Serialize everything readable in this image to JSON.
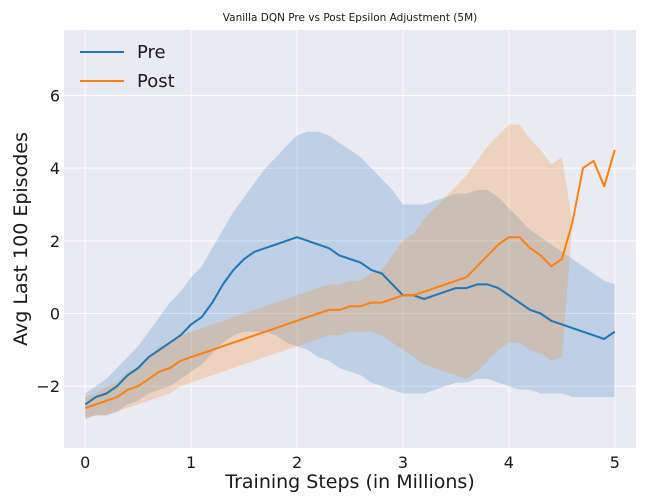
{
  "chart_data": {
    "type": "line",
    "title": "Vanilla DQN Pre vs Post Epsilon Adjustment (5M)",
    "xlabel": "Training Steps (in Millions)",
    "ylabel": "Avg Last 100 Episodes",
    "xlim": [
      -0.2,
      5.2
    ],
    "ylim": [
      -3.7,
      7.8
    ],
    "xticks": [
      0,
      1,
      2,
      3,
      4,
      5
    ],
    "xtick_labels": [
      "0",
      "1",
      "2",
      "3",
      "4",
      "5"
    ],
    "yticks": [
      -2,
      0,
      2,
      4,
      6
    ],
    "ytick_labels": [
      "−2",
      "0",
      "2",
      "4",
      "6"
    ],
    "grid": true,
    "legend_position": "top-left",
    "style": "seaborn-darkgrid",
    "background_color": "#eaeaf2",
    "series": [
      {
        "name": "Pre",
        "color": "#1f77b4",
        "x": [
          0.0,
          0.1,
          0.2,
          0.3,
          0.4,
          0.5,
          0.6,
          0.7,
          0.8,
          0.9,
          1.0,
          1.1,
          1.2,
          1.3,
          1.4,
          1.5,
          1.6,
          1.7,
          1.8,
          1.9,
          2.0,
          2.1,
          2.2,
          2.3,
          2.4,
          2.5,
          2.6,
          2.7,
          2.8,
          2.9,
          3.0,
          3.1,
          3.2,
          3.3,
          3.4,
          3.5,
          3.6,
          3.7,
          3.8,
          3.9,
          4.0,
          4.1,
          4.2,
          4.3,
          4.4,
          4.5,
          4.6,
          4.7,
          4.8,
          4.9,
          5.0
        ],
        "y": [
          -2.5,
          -2.3,
          -2.2,
          -2.0,
          -1.7,
          -1.5,
          -1.2,
          -1.0,
          -0.8,
          -0.6,
          -0.3,
          -0.1,
          0.3,
          0.8,
          1.2,
          1.5,
          1.7,
          1.8,
          1.9,
          2.0,
          2.1,
          2.0,
          1.9,
          1.8,
          1.6,
          1.5,
          1.4,
          1.2,
          1.1,
          0.8,
          0.5,
          0.5,
          0.4,
          0.5,
          0.6,
          0.7,
          0.7,
          0.8,
          0.8,
          0.7,
          0.5,
          0.3,
          0.1,
          0.0,
          -0.2,
          -0.3,
          -0.4,
          -0.5,
          -0.6,
          -0.7,
          -0.5
        ],
        "band_low": [
          -2.9,
          -2.8,
          -2.8,
          -2.7,
          -2.5,
          -2.4,
          -2.2,
          -2.1,
          -2.0,
          -1.8,
          -1.6,
          -1.4,
          -1.1,
          -0.8,
          -0.6,
          -0.5,
          -0.5,
          -0.5,
          -0.6,
          -0.8,
          -0.9,
          -1.0,
          -1.2,
          -1.3,
          -1.5,
          -1.6,
          -1.7,
          -1.9,
          -2.0,
          -2.1,
          -2.2,
          -2.2,
          -2.2,
          -2.1,
          -2.0,
          -1.9,
          -1.9,
          -1.8,
          -1.8,
          -1.9,
          -2.0,
          -2.1,
          -2.1,
          -2.2,
          -2.2,
          -2.2,
          -2.3,
          -2.3,
          -2.3,
          -2.3,
          -2.3
        ],
        "band_high": [
          -2.2,
          -2.0,
          -1.8,
          -1.5,
          -1.2,
          -0.9,
          -0.5,
          -0.1,
          0.3,
          0.6,
          1.0,
          1.3,
          1.8,
          2.3,
          2.8,
          3.2,
          3.6,
          4.0,
          4.3,
          4.6,
          4.9,
          5.0,
          5.0,
          4.9,
          4.7,
          4.5,
          4.3,
          4.0,
          3.7,
          3.4,
          3.0,
          3.0,
          3.0,
          3.1,
          3.2,
          3.3,
          3.3,
          3.4,
          3.4,
          3.2,
          2.9,
          2.6,
          2.3,
          2.1,
          1.9,
          1.7,
          1.5,
          1.3,
          1.1,
          0.9,
          0.8
        ]
      },
      {
        "name": "Post",
        "color": "#ff7f0e",
        "x": [
          0.0,
          0.1,
          0.2,
          0.3,
          0.4,
          0.5,
          0.6,
          0.7,
          0.8,
          0.9,
          1.0,
          1.1,
          1.2,
          1.3,
          1.4,
          1.5,
          1.6,
          1.7,
          1.8,
          1.9,
          2.0,
          2.1,
          2.2,
          2.3,
          2.4,
          2.5,
          2.6,
          2.7,
          2.8,
          2.9,
          3.0,
          3.1,
          3.2,
          3.3,
          3.4,
          3.5,
          3.6,
          3.7,
          3.8,
          3.9,
          4.0,
          4.1,
          4.2,
          4.3,
          4.4,
          4.5,
          4.6,
          4.7,
          4.8,
          4.9,
          5.0
        ],
        "y": [
          -2.6,
          -2.5,
          -2.4,
          -2.3,
          -2.1,
          -2.0,
          -1.8,
          -1.6,
          -1.5,
          -1.3,
          -1.2,
          -1.1,
          -1.0,
          -0.9,
          -0.8,
          -0.7,
          -0.6,
          -0.5,
          -0.4,
          -0.3,
          -0.2,
          -0.1,
          0.0,
          0.1,
          0.1,
          0.2,
          0.2,
          0.3,
          0.3,
          0.4,
          0.5,
          0.5,
          0.6,
          0.7,
          0.8,
          0.9,
          1.0,
          1.3,
          1.6,
          1.9,
          2.1,
          2.1,
          1.8,
          1.6,
          1.3,
          1.5,
          2.5,
          4.0,
          4.2,
          3.5,
          4.5
        ],
        "band_low": [
          -2.9,
          -2.8,
          -2.8,
          -2.7,
          -2.6,
          -2.5,
          -2.4,
          -2.3,
          -2.2,
          -2.0,
          -1.9,
          -1.8,
          -1.7,
          -1.6,
          -1.5,
          -1.4,
          -1.3,
          -1.2,
          -1.1,
          -1.0,
          -0.9,
          -0.8,
          -0.7,
          -0.6,
          -0.6,
          -0.5,
          -0.5,
          -0.5,
          -0.6,
          -0.8,
          -1.0,
          -1.2,
          -1.4,
          -1.5,
          -1.6,
          -1.7,
          -1.8,
          -1.6,
          -1.3,
          -1.0,
          -0.8,
          -0.8,
          -1.0,
          -1.1,
          -1.3,
          -1.2,
          2.5,
          4.0,
          4.2,
          3.5,
          4.5
        ],
        "band_high": [
          -2.3,
          -2.2,
          -2.0,
          -1.9,
          -1.6,
          -1.5,
          -1.2,
          -0.9,
          -0.8,
          -0.6,
          -0.5,
          -0.4,
          -0.3,
          -0.2,
          -0.1,
          0.0,
          0.1,
          0.2,
          0.3,
          0.4,
          0.5,
          0.6,
          0.7,
          0.8,
          0.8,
          0.9,
          0.9,
          1.1,
          1.2,
          1.6,
          2.0,
          2.2,
          2.6,
          2.9,
          3.2,
          3.5,
          3.8,
          4.2,
          4.6,
          4.9,
          5.2,
          5.2,
          4.8,
          4.5,
          4.1,
          4.3,
          2.5,
          4.0,
          4.2,
          3.5,
          4.5
        ]
      }
    ]
  }
}
